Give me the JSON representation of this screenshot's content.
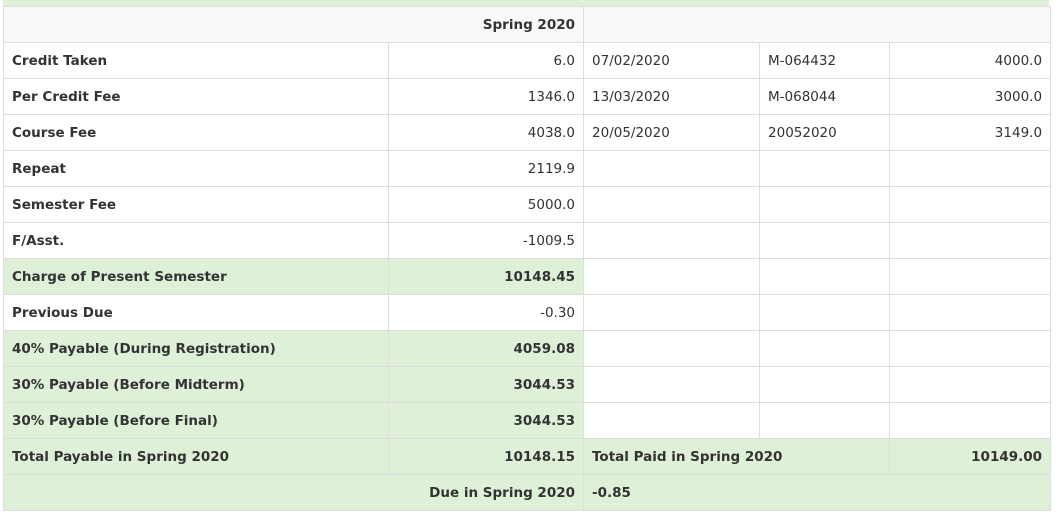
{
  "semester_header": "Spring 2020",
  "rows": [
    {
      "label": "Credit Taken",
      "value": "6.0",
      "date": "07/02/2020",
      "ref": "M-064432",
      "paid": "4000.0"
    },
    {
      "label": "Per Credit Fee",
      "value": "1346.0",
      "date": "13/03/2020",
      "ref": "M-068044",
      "paid": "3000.0"
    },
    {
      "label": "Course Fee",
      "value": "4038.0",
      "date": "20/05/2020",
      "ref": "20052020",
      "paid": "3149.0"
    },
    {
      "label": "Repeat",
      "value": "2119.9"
    },
    {
      "label": "Semester Fee",
      "value": "5000.0"
    },
    {
      "label": "F/Asst.",
      "value": "-1009.5"
    },
    {
      "label": "Charge of Present Semester",
      "value": "10148.45"
    },
    {
      "label": "Previous Due",
      "value": "-0.30"
    },
    {
      "label": "40% Payable (During Registration)",
      "value": "4059.08"
    },
    {
      "label": "30% Payable (Before Midterm)",
      "value": "3044.53"
    },
    {
      "label": "30% Payable (Before Final)",
      "value": "3044.53"
    }
  ],
  "total_row": {
    "label": "Total Payable in Spring 2020",
    "value": "10148.15",
    "paid_label": "Total Paid in Spring 2020",
    "paid_value": "10149.00"
  },
  "due_row": {
    "label": "Due in Spring 2020",
    "value": "-0.85"
  },
  "colors": {
    "highlight": "#dff0d8",
    "border": "#dddddd",
    "text": "#333333"
  }
}
